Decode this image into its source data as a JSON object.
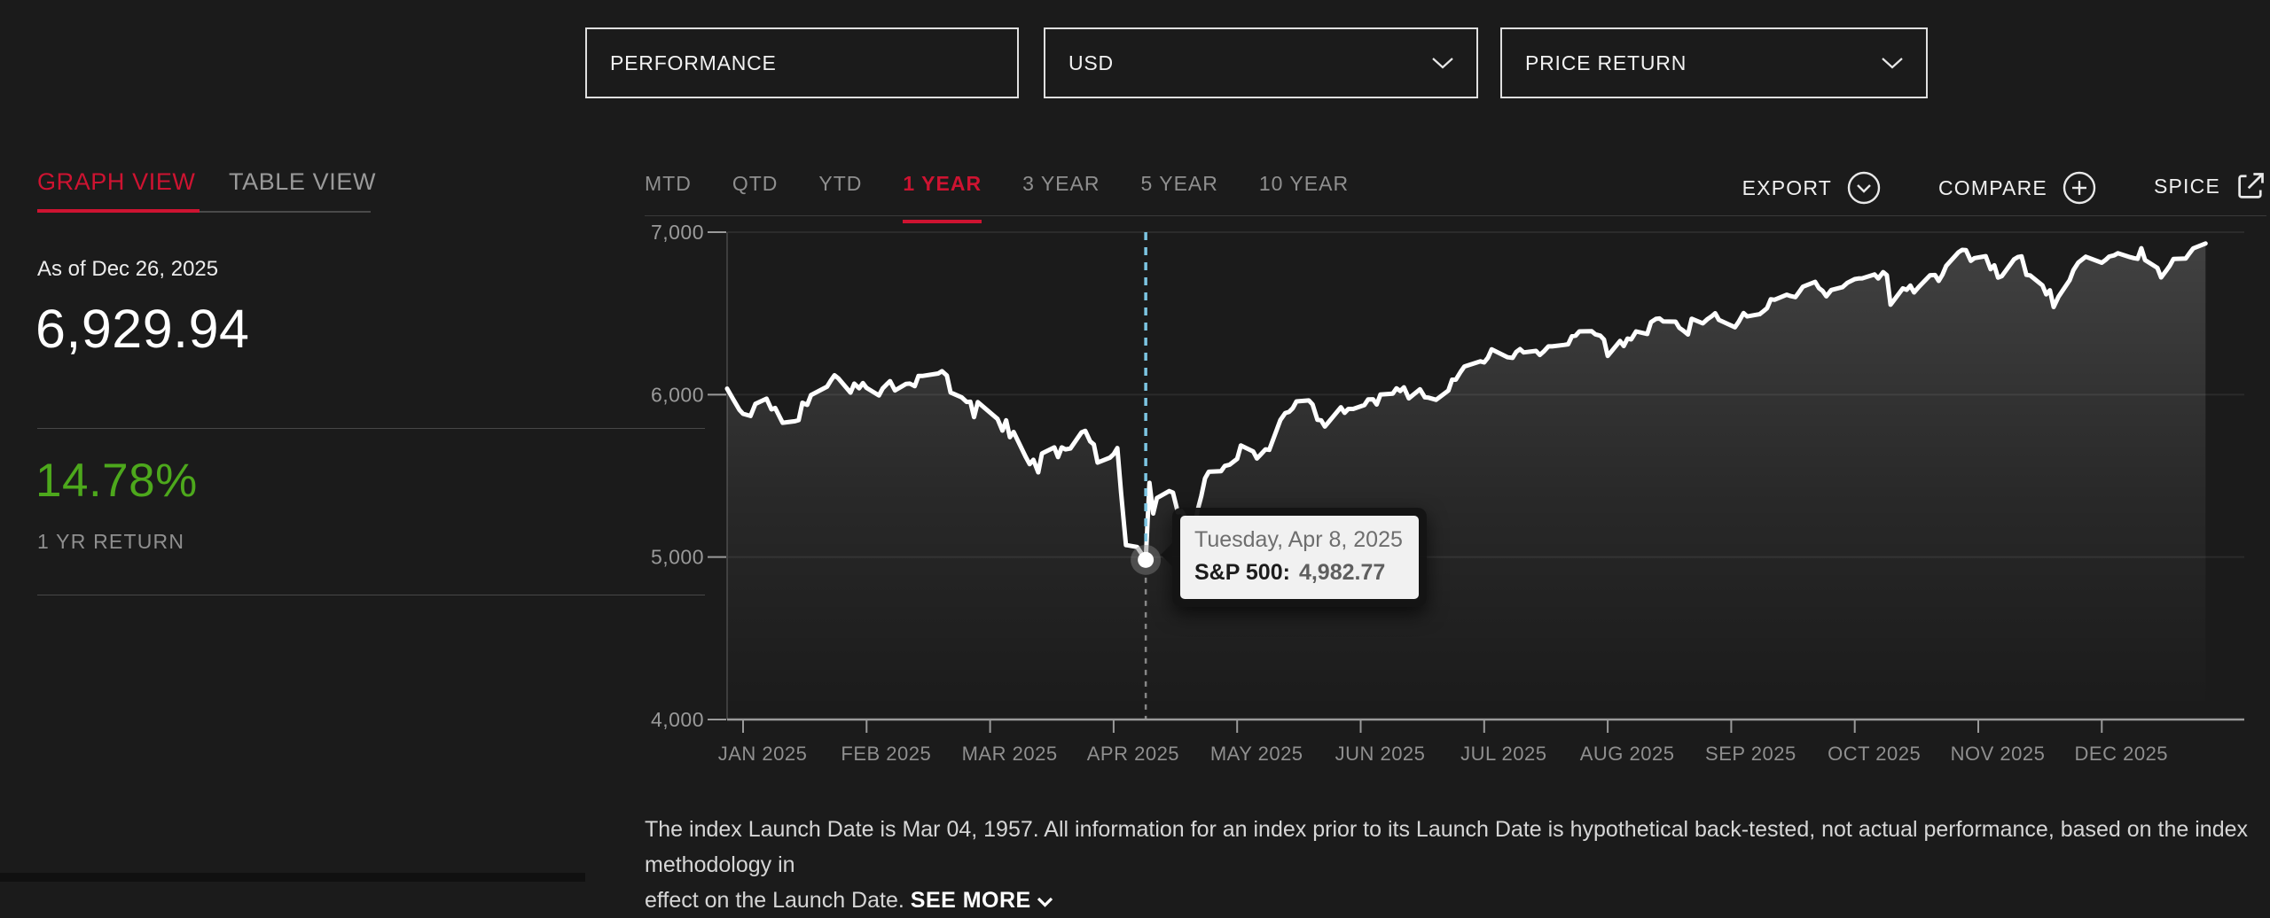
{
  "controls": {
    "performance": {
      "label": "PERFORMANCE"
    },
    "currency": {
      "value": "USD"
    },
    "return_type": {
      "value": "PRICE RETURN"
    }
  },
  "view_tabs": {
    "graph": "GRAPH VIEW",
    "table": "TABLE VIEW"
  },
  "summary": {
    "as_of": "As of Dec 26, 2025",
    "level": "6,929.94",
    "return_pct": "14.78%",
    "return_label": "1 YR RETURN"
  },
  "range_tabs": [
    {
      "label": "MTD",
      "active": false
    },
    {
      "label": "QTD",
      "active": false
    },
    {
      "label": "YTD",
      "active": false
    },
    {
      "label": "1 YEAR",
      "active": true
    },
    {
      "label": "3 YEAR",
      "active": false
    },
    {
      "label": "5 YEAR",
      "active": false
    },
    {
      "label": "10 YEAR",
      "active": false
    }
  ],
  "actions": {
    "export": "EXPORT",
    "compare": "COMPARE",
    "spice": "SPICE"
  },
  "tooltip": {
    "date": "Tuesday, Apr 8, 2025",
    "series": "S&P 500:",
    "value": "4,982.77"
  },
  "disclaimer": {
    "line1": "The index Launch Date is Mar 04, 1957. All information for an index prior to its Launch Date is hypothetical back-tested, not actual performance, based on the index methodology in",
    "line2": "effect on the Launch Date.",
    "see_more": "SEE MORE"
  },
  "colors": {
    "accent_red": "#ce1331",
    "positive_green": "#4da81c",
    "highlight_cyan": "#7cc5e2",
    "background": "#1b1b1b"
  },
  "chart_data": {
    "type": "line",
    "title": "S&P 500 — 1 Year Price Return (USD)",
    "series_name": "S&P 500",
    "ylim": [
      4000,
      7000
    ],
    "yticks": [
      7000,
      6000,
      5000,
      4000
    ],
    "ytick_labels": [
      "7,000",
      "6,000",
      "5,000",
      "4,000"
    ],
    "x_months": [
      "JAN 2025",
      "FEB 2025",
      "MAR 2025",
      "APR 2025",
      "MAY 2025",
      "JUN 2025",
      "JUL 2025",
      "AUG 2025",
      "SEP 2025",
      "OCT 2025",
      "NOV 2025",
      "DEC 2025"
    ],
    "grid": "horizontal-faint",
    "legend": "none",
    "highlight": {
      "t": 3.26,
      "value": 4982.77,
      "date": "Tuesday, Apr 8, 2025"
    },
    "end_value": 6929.94,
    "points": [
      [
        -0.13,
        6037
      ],
      [
        -0.08,
        5971
      ],
      [
        -0.03,
        5907
      ],
      [
        0.0,
        5882
      ],
      [
        0.06,
        5869
      ],
      [
        0.1,
        5943
      ],
      [
        0.19,
        5975
      ],
      [
        0.23,
        5909
      ],
      [
        0.26,
        5918
      ],
      [
        0.32,
        5827
      ],
      [
        0.42,
        5836
      ],
      [
        0.45,
        5843
      ],
      [
        0.48,
        5950
      ],
      [
        0.52,
        5937
      ],
      [
        0.55,
        5997
      ],
      [
        0.68,
        6049
      ],
      [
        0.71,
        6086
      ],
      [
        0.74,
        6119
      ],
      [
        0.77,
        6101
      ],
      [
        0.87,
        6012
      ],
      [
        0.9,
        6068
      ],
      [
        0.94,
        6039
      ],
      [
        0.97,
        6071
      ],
      [
        1.0,
        6041
      ],
      [
        1.1,
        5995
      ],
      [
        1.13,
        6038
      ],
      [
        1.16,
        6061
      ],
      [
        1.19,
        6083
      ],
      [
        1.23,
        6026
      ],
      [
        1.32,
        6066
      ],
      [
        1.35,
        6068
      ],
      [
        1.39,
        6052
      ],
      [
        1.42,
        6115
      ],
      [
        1.45,
        6115
      ],
      [
        1.58,
        6130
      ],
      [
        1.61,
        6144
      ],
      [
        1.65,
        6118
      ],
      [
        1.68,
        6013
      ],
      [
        1.77,
        5983
      ],
      [
        1.81,
        5955
      ],
      [
        1.84,
        5956
      ],
      [
        1.87,
        5861
      ],
      [
        1.9,
        5954
      ],
      [
        2.06,
        5850
      ],
      [
        2.1,
        5778
      ],
      [
        2.13,
        5842
      ],
      [
        2.16,
        5738
      ],
      [
        2.19,
        5770
      ],
      [
        2.29,
        5614
      ],
      [
        2.32,
        5572
      ],
      [
        2.35,
        5599
      ],
      [
        2.39,
        5521
      ],
      [
        2.42,
        5638
      ],
      [
        2.52,
        5675
      ],
      [
        2.55,
        5615
      ],
      [
        2.58,
        5675
      ],
      [
        2.61,
        5663
      ],
      [
        2.65,
        5668
      ],
      [
        2.74,
        5768
      ],
      [
        2.77,
        5777
      ],
      [
        2.81,
        5712
      ],
      [
        2.84,
        5693
      ],
      [
        2.87,
        5581
      ],
      [
        2.97,
        5612
      ],
      [
        3.0,
        5633
      ],
      [
        3.03,
        5671
      ],
      [
        3.06,
        5396
      ],
      [
        3.1,
        5074
      ],
      [
        3.19,
        5062
      ],
      [
        3.26,
        4982.77
      ],
      [
        3.29,
        5457
      ],
      [
        3.32,
        5268
      ],
      [
        3.35,
        5363
      ],
      [
        3.45,
        5406
      ],
      [
        3.48,
        5397
      ],
      [
        3.52,
        5276
      ],
      [
        3.55,
        5283
      ],
      [
        3.65,
        5158
      ],
      [
        3.68,
        5288
      ],
      [
        3.71,
        5376
      ],
      [
        3.74,
        5485
      ],
      [
        3.77,
        5525
      ],
      [
        3.87,
        5529
      ],
      [
        3.9,
        5561
      ],
      [
        3.94,
        5569
      ],
      [
        4.0,
        5604
      ],
      [
        4.03,
        5687
      ],
      [
        4.13,
        5650
      ],
      [
        4.16,
        5607
      ],
      [
        4.19,
        5631
      ],
      [
        4.23,
        5663
      ],
      [
        4.26,
        5660
      ],
      [
        4.35,
        5844
      ],
      [
        4.39,
        5887
      ],
      [
        4.42,
        5893
      ],
      [
        4.45,
        5916
      ],
      [
        4.48,
        5958
      ],
      [
        4.58,
        5964
      ],
      [
        4.61,
        5940
      ],
      [
        4.65,
        5845
      ],
      [
        4.68,
        5842
      ],
      [
        4.71,
        5803
      ],
      [
        4.84,
        5922
      ],
      [
        4.87,
        5888
      ],
      [
        4.9,
        5912
      ],
      [
        4.94,
        5912
      ],
      [
        5.03,
        5936
      ],
      [
        5.06,
        5970
      ],
      [
        5.1,
        5971
      ],
      [
        5.13,
        5939
      ],
      [
        5.16,
        6000
      ],
      [
        5.26,
        6006
      ],
      [
        5.29,
        6039
      ],
      [
        5.32,
        6022
      ],
      [
        5.35,
        6045
      ],
      [
        5.39,
        5977
      ],
      [
        5.48,
        6033
      ],
      [
        5.52,
        5983
      ],
      [
        5.55,
        5981
      ],
      [
        5.61,
        5968
      ],
      [
        5.71,
        6025
      ],
      [
        5.74,
        6092
      ],
      [
        5.77,
        6092
      ],
      [
        5.81,
        6141
      ],
      [
        5.84,
        6173
      ],
      [
        5.97,
        6205
      ],
      [
        6.0,
        6198
      ],
      [
        6.03,
        6227
      ],
      [
        6.06,
        6279
      ],
      [
        6.19,
        6230
      ],
      [
        6.23,
        6226
      ],
      [
        6.26,
        6263
      ],
      [
        6.29,
        6280
      ],
      [
        6.32,
        6260
      ],
      [
        6.42,
        6269
      ],
      [
        6.45,
        6244
      ],
      [
        6.48,
        6264
      ],
      [
        6.52,
        6297
      ],
      [
        6.55,
        6297
      ],
      [
        6.65,
        6306
      ],
      [
        6.68,
        6310
      ],
      [
        6.71,
        6359
      ],
      [
        6.74,
        6363
      ],
      [
        6.77,
        6389
      ],
      [
        6.87,
        6390
      ],
      [
        6.9,
        6371
      ],
      [
        6.94,
        6363
      ],
      [
        6.97,
        6339
      ],
      [
        7.0,
        6238
      ],
      [
        7.1,
        6330
      ],
      [
        7.13,
        6299
      ],
      [
        7.16,
        6345
      ],
      [
        7.19,
        6340
      ],
      [
        7.23,
        6389
      ],
      [
        7.32,
        6373
      ],
      [
        7.35,
        6446
      ],
      [
        7.39,
        6466
      ],
      [
        7.42,
        6469
      ],
      [
        7.45,
        6450
      ],
      [
        7.55,
        6449
      ],
      [
        7.58,
        6411
      ],
      [
        7.61,
        6395
      ],
      [
        7.65,
        6370
      ],
      [
        7.68,
        6467
      ],
      [
        7.77,
        6439
      ],
      [
        7.81,
        6466
      ],
      [
        7.84,
        6481
      ],
      [
        7.87,
        6501
      ],
      [
        7.9,
        6460
      ],
      [
        8.03,
        6415
      ],
      [
        8.06,
        6448
      ],
      [
        8.1,
        6502
      ],
      [
        8.13,
        6481
      ],
      [
        8.23,
        6495
      ],
      [
        8.26,
        6513
      ],
      [
        8.29,
        6532
      ],
      [
        8.32,
        6587
      ],
      [
        8.35,
        6584
      ],
      [
        8.45,
        6615
      ],
      [
        8.48,
        6607
      ],
      [
        8.52,
        6600
      ],
      [
        8.55,
        6632
      ],
      [
        8.58,
        6664
      ],
      [
        8.68,
        6694
      ],
      [
        8.71,
        6656
      ],
      [
        8.74,
        6638
      ],
      [
        8.77,
        6605
      ],
      [
        8.81,
        6644
      ],
      [
        8.9,
        6661
      ],
      [
        8.94,
        6688
      ],
      [
        9.0,
        6711
      ],
      [
        9.03,
        6715
      ],
      [
        9.06,
        6716
      ],
      [
        9.16,
        6740
      ],
      [
        9.19,
        6715
      ],
      [
        9.23,
        6754
      ],
      [
        9.26,
        6735
      ],
      [
        9.29,
        6553
      ],
      [
        9.39,
        6654
      ],
      [
        9.42,
        6645
      ],
      [
        9.45,
        6671
      ],
      [
        9.48,
        6629
      ],
      [
        9.52,
        6664
      ],
      [
        9.61,
        6735
      ],
      [
        9.65,
        6736
      ],
      [
        9.68,
        6700
      ],
      [
        9.71,
        6738
      ],
      [
        9.74,
        6792
      ],
      [
        9.84,
        6876
      ],
      [
        9.87,
        6891
      ],
      [
        9.9,
        6890
      ],
      [
        9.94,
        6823
      ],
      [
        9.97,
        6840
      ],
      [
        10.06,
        6852
      ],
      [
        10.1,
        6772
      ],
      [
        10.13,
        6796
      ],
      [
        10.16,
        6720
      ],
      [
        10.19,
        6729
      ],
      [
        10.29,
        6833
      ],
      [
        10.32,
        6847
      ],
      [
        10.35,
        6851
      ],
      [
        10.39,
        6737
      ],
      [
        10.42,
        6734
      ],
      [
        10.52,
        6672
      ],
      [
        10.55,
        6617
      ],
      [
        10.58,
        6642
      ],
      [
        10.61,
        6539
      ],
      [
        10.65,
        6603
      ],
      [
        10.74,
        6705
      ],
      [
        10.77,
        6766
      ],
      [
        10.81,
        6813
      ],
      [
        10.87,
        6849
      ],
      [
        11.0,
        6812
      ],
      [
        11.03,
        6829
      ],
      [
        11.06,
        6850
      ],
      [
        11.1,
        6857
      ],
      [
        11.13,
        6870
      ],
      [
        11.23,
        6846
      ],
      [
        11.26,
        6840
      ],
      [
        11.29,
        6836
      ],
      [
        11.32,
        6901
      ],
      [
        11.35,
        6828
      ],
      [
        11.45,
        6780
      ],
      [
        11.48,
        6721
      ],
      [
        11.52,
        6761
      ],
      [
        11.55,
        6793
      ],
      [
        11.58,
        6835
      ],
      [
        11.68,
        6838
      ],
      [
        11.71,
        6870
      ],
      [
        11.74,
        6900
      ],
      [
        11.84,
        6929.94
      ]
    ]
  }
}
